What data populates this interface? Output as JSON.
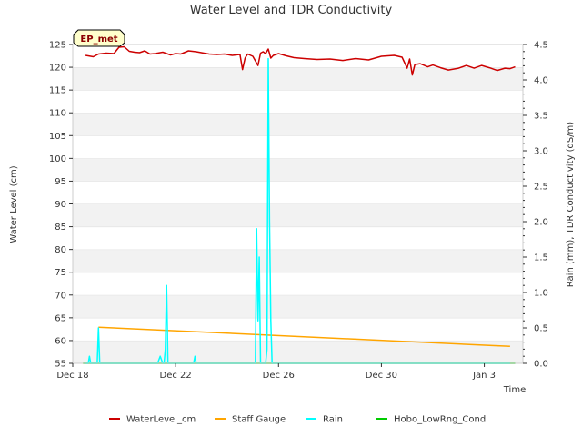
{
  "chart_data": {
    "type": "line",
    "title": "Water Level and TDR Conductivity",
    "xlabel": "Time",
    "ylabel": "Water Level (cm)",
    "y2label": "Rain (mm), TDR Conductivity (dS/m)",
    "badge": "EP_met",
    "xlim": [
      0,
      17.5
    ],
    "x_ticks": [
      {
        "x": 0,
        "label": "Dec 18"
      },
      {
        "x": 4,
        "label": "Dec 22"
      },
      {
        "x": 8,
        "label": "Dec 26"
      },
      {
        "x": 12,
        "label": "Dec 30"
      },
      {
        "x": 16,
        "label": "Jan 3"
      }
    ],
    "ylim": [
      55,
      125
    ],
    "y_ticks": [
      55,
      60,
      65,
      70,
      75,
      80,
      85,
      90,
      95,
      100,
      105,
      110,
      115,
      120,
      125
    ],
    "y2lim": [
      0,
      4.5
    ],
    "y2_ticks": [
      "0.0",
      "0.5",
      "1.0",
      "1.5",
      "2.0",
      "2.5",
      "3.0",
      "3.5",
      "4.0",
      "4.5"
    ],
    "legend_position": "bottom",
    "series": [
      {
        "name": "WaterLevel_cm",
        "axis": "left",
        "color": "#cc0000",
        "x": [
          0.5,
          0.8,
          1.0,
          1.3,
          1.6,
          1.8,
          2.0,
          2.2,
          2.4,
          2.6,
          2.8,
          3.0,
          3.2,
          3.5,
          3.8,
          4.0,
          4.2,
          4.5,
          4.8,
          5.0,
          5.3,
          5.6,
          5.9,
          6.2,
          6.5,
          6.6,
          6.7,
          6.8,
          7.0,
          7.2,
          7.3,
          7.4,
          7.5,
          7.6,
          7.7,
          7.8,
          8.0,
          8.3,
          8.6,
          9.0,
          9.5,
          10.0,
          10.5,
          11.0,
          11.5,
          12.0,
          12.5,
          12.8,
          13.0,
          13.1,
          13.2,
          13.3,
          13.5,
          13.8,
          14.0,
          14.3,
          14.6,
          15.0,
          15.3,
          15.6,
          15.9,
          16.2,
          16.5,
          16.8,
          17.0,
          17.2
        ],
        "y": [
          122.6,
          122.3,
          122.9,
          123.1,
          123.0,
          124.4,
          124.5,
          123.5,
          123.3,
          123.2,
          123.6,
          122.9,
          123.0,
          123.3,
          122.7,
          123.0,
          122.9,
          123.6,
          123.4,
          123.2,
          122.9,
          122.8,
          122.9,
          122.6,
          122.8,
          119.5,
          122.0,
          122.9,
          122.4,
          120.4,
          123.1,
          123.4,
          123.0,
          124.0,
          122.0,
          122.6,
          123.0,
          122.5,
          122.1,
          121.9,
          121.7,
          121.8,
          121.5,
          121.9,
          121.6,
          122.4,
          122.6,
          122.2,
          119.8,
          121.8,
          118.3,
          120.6,
          120.8,
          120.1,
          120.5,
          119.9,
          119.4,
          119.8,
          120.4,
          119.8,
          120.4,
          119.9,
          119.3,
          119.8,
          119.7,
          120.1
        ]
      },
      {
        "name": "Staff Gauge",
        "axis": "right",
        "color": "#ffa500",
        "x": [
          1.0,
          17.0
        ],
        "y": [
          0.51,
          0.24
        ]
      },
      {
        "name": "Rain",
        "axis": "right",
        "color": "#00ffff",
        "x": [
          0.5,
          0.6,
          0.65,
          0.7,
          0.8,
          0.95,
          1.0,
          1.05,
          1.1,
          1.2,
          3.2,
          3.3,
          3.4,
          3.5,
          3.55,
          3.6,
          3.65,
          3.7,
          3.75,
          3.8,
          4.7,
          4.75,
          4.8,
          4.85,
          7.0,
          7.1,
          7.12,
          7.15,
          7.2,
          7.25,
          7.3,
          7.35,
          7.5,
          7.55,
          7.6,
          7.65,
          7.7,
          7.75,
          7.8,
          7.9,
          8.0,
          16.5,
          17.0
        ],
        "y": [
          0.0,
          0.0,
          0.1,
          0.0,
          0.0,
          0.0,
          0.5,
          0.0,
          0.0,
          0.0,
          0.0,
          0.0,
          0.1,
          0.0,
          0.0,
          0.2,
          1.1,
          0.0,
          0.0,
          0.0,
          0.0,
          0.1,
          0.0,
          0.0,
          0.0,
          0.0,
          0.8,
          1.9,
          0.6,
          1.5,
          0.0,
          0.0,
          0.0,
          0.2,
          4.3,
          2.0,
          0.6,
          0.0,
          0.0,
          0.0,
          0.0,
          0.0,
          0.0
        ]
      },
      {
        "name": "Hobo_LowRng_Cond",
        "axis": "right",
        "color": "#00cc00",
        "x": [
          0.4,
          17.2
        ],
        "y": [
          0.0,
          0.0
        ]
      }
    ]
  }
}
